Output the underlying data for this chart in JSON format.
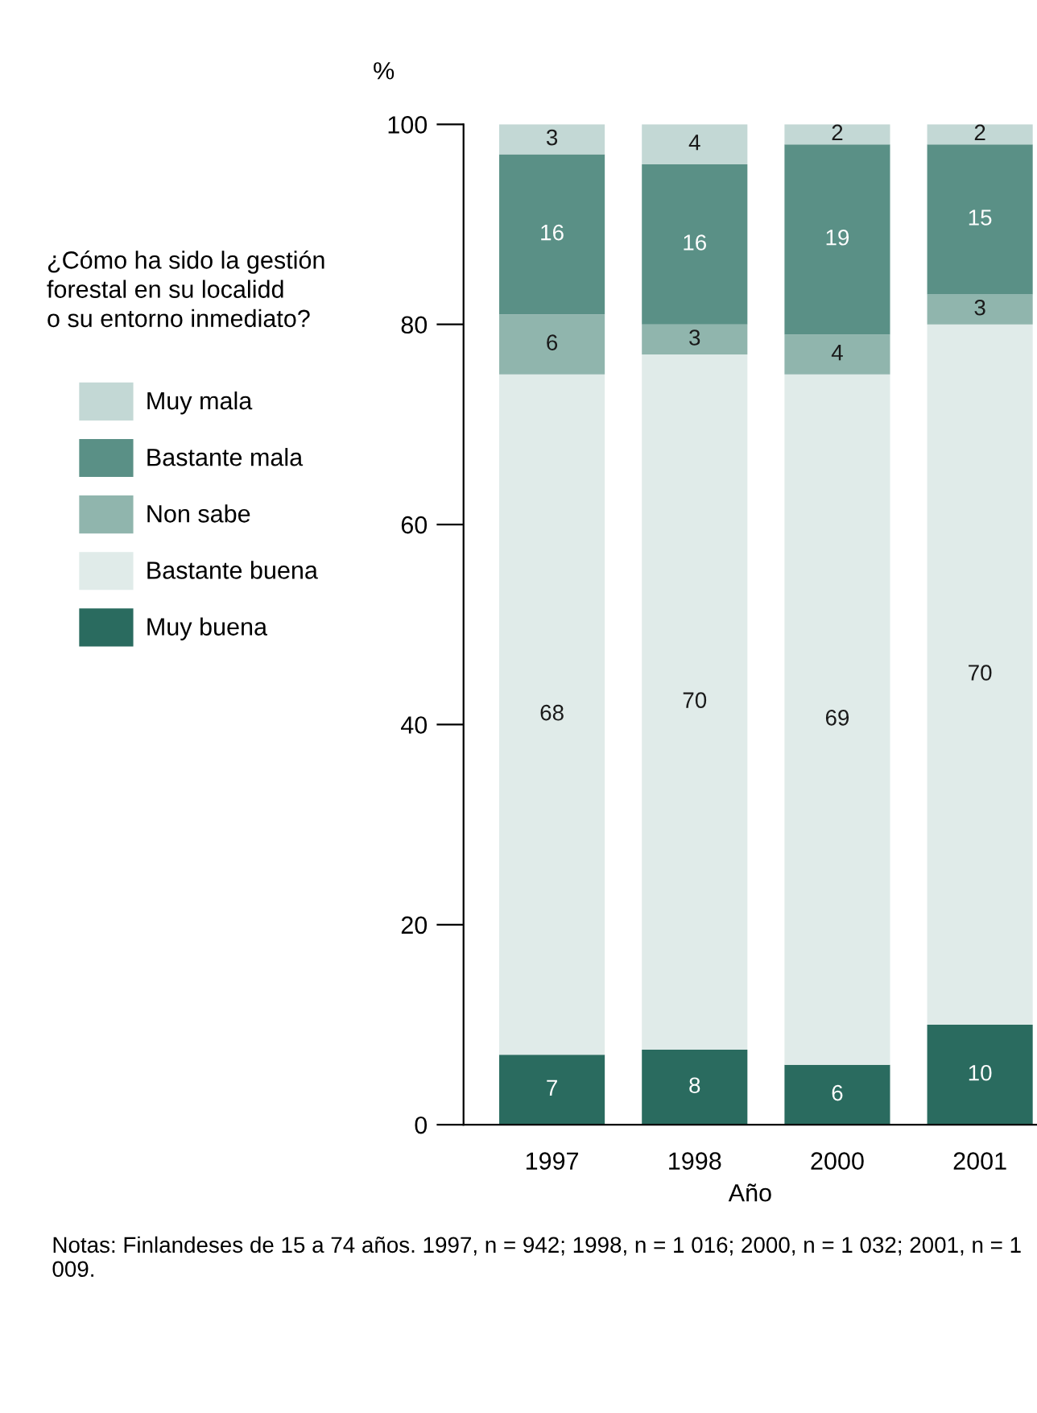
{
  "chart_data": {
    "type": "bar",
    "stacked": true,
    "ylabel": "%",
    "xlabel": "Año",
    "legend_title": "¿Cómo ha sido la gestión\nforestal en su localidd\no su entorno inmediato?",
    "legend": "left",
    "grid": false,
    "categories": [
      "1997",
      "1998",
      "2000",
      "2001"
    ],
    "ylim": [
      0,
      100
    ],
    "yticks": [
      0,
      20,
      40,
      60,
      80,
      100
    ],
    "series": [
      {
        "name": "Muy buena",
        "color": "#2a6b5f",
        "values": [
          7,
          7.5,
          6,
          10
        ],
        "value_labels": [
          "7",
          "8",
          "6",
          "10"
        ]
      },
      {
        "name": "Bastante buena",
        "color": "#e0ebe9",
        "values": [
          68,
          69.5,
          69,
          70
        ],
        "value_labels": [
          "68",
          "70",
          "69",
          "70"
        ]
      },
      {
        "name": "Non sabe",
        "color": "#90b5ad",
        "values": [
          6,
          3,
          4,
          3
        ],
        "value_labels": [
          "6",
          "3",
          "4",
          "3"
        ]
      },
      {
        "name": "Bastante mala",
        "color": "#5a9086",
        "values": [
          16,
          16,
          19,
          15
        ],
        "value_labels": [
          "16",
          "16",
          "19",
          "15"
        ]
      },
      {
        "name": "Muy mala",
        "color": "#c3d8d5",
        "values": [
          3,
          4,
          2,
          2
        ],
        "value_labels": [
          "3",
          "4",
          "2",
          "2"
        ]
      }
    ],
    "annotations": [
      "Notas: Finlandeses de 15 a 74 años. 1997, n = 942; 1998, n = 1 016; 2000, n = 1 032; 2001, n = 1 009."
    ]
  }
}
